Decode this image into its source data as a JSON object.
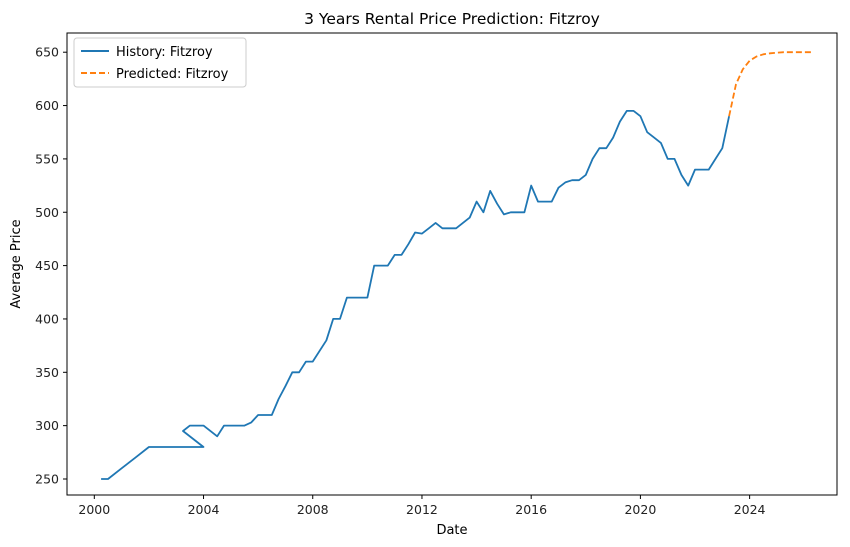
{
  "chart_data": {
    "type": "line",
    "title": "3 Years Rental Price Prediction: Fitzroy",
    "xlabel": "Date",
    "ylabel": "Average Price",
    "xlim": [
      1999.0,
      2027.2
    ],
    "ylim": [
      235,
      668
    ],
    "xticks": [
      2000,
      2004,
      2008,
      2012,
      2016,
      2020,
      2024
    ],
    "yticks": [
      250,
      300,
      350,
      400,
      450,
      500,
      550,
      600,
      650
    ],
    "legend_position": "top-left",
    "series": [
      {
        "name": "History: Fitzroy",
        "color": "#1f77b4",
        "style": "solid",
        "x": [
          2000.25,
          2000.5,
          2001.0,
          2001.5,
          2002.0,
          2002.5,
          2003.0,
          2003.25,
          2003.5,
          2004.0,
          2003.25,
          2003.5,
          2004.0,
          2004.5,
          2004.75,
          2005.0,
          2005.5,
          2005.75,
          2006.0,
          2006.25,
          2006.5,
          2006.75,
          2007.0,
          2007.25,
          2007.5,
          2007.75,
          2008.0,
          2008.5,
          2008.75,
          2009.0,
          2009.25,
          2009.5,
          2010.0,
          2010.25,
          2010.5,
          2010.75,
          2011.0,
          2011.25,
          2011.5,
          2011.75,
          2012.0,
          2012.25,
          2012.5,
          2012.75,
          2013.0,
          2013.25,
          2013.5,
          2013.75,
          2014.0,
          2014.25,
          2014.5,
          2014.75,
          2015.0,
          2015.25,
          2015.5,
          2015.75,
          2016.0,
          2016.25,
          2016.5,
          2016.75,
          2017.0,
          2017.25,
          2017.5,
          2017.75,
          2018.0,
          2018.25,
          2018.5,
          2018.75,
          2019.0,
          2019.25,
          2019.5,
          2019.75,
          2020.0,
          2020.25,
          2020.5,
          2020.75,
          2021.0,
          2021.25,
          2021.5,
          2021.75,
          2022.0,
          2022.25,
          2022.5,
          2022.75,
          2023.0,
          2023.25
        ],
        "values": [
          250,
          250,
          260,
          270,
          280,
          280,
          280,
          280,
          280,
          280,
          295,
          300,
          300,
          290,
          300,
          300,
          300,
          303,
          310,
          310,
          310,
          325,
          337,
          350,
          350,
          360,
          360,
          380,
          400,
          400,
          420,
          420,
          420,
          450,
          450,
          450,
          460,
          460,
          470,
          481,
          480,
          485,
          490,
          485,
          485,
          485,
          490,
          495,
          510,
          500,
          520,
          508,
          498,
          500,
          500,
          500,
          525,
          510,
          510,
          510,
          523,
          528,
          530,
          530,
          535,
          550,
          560,
          560,
          570,
          585,
          595,
          595,
          590,
          575,
          570,
          565,
          550,
          550,
          535,
          525,
          540,
          540,
          540,
          550,
          560,
          590
        ]
      },
      {
        "name": "Predicted: Fitzroy",
        "color": "#ff7f0e",
        "style": "dashed",
        "x": [
          2023.25,
          2023.5,
          2023.75,
          2024.0,
          2024.25,
          2024.5,
          2024.75,
          2025.0,
          2025.25,
          2025.5,
          2025.75,
          2026.0,
          2026.25
        ],
        "values": [
          590,
          620,
          634,
          642,
          646,
          648,
          649,
          649.5,
          650,
          650,
          650,
          650,
          650
        ]
      }
    ]
  }
}
